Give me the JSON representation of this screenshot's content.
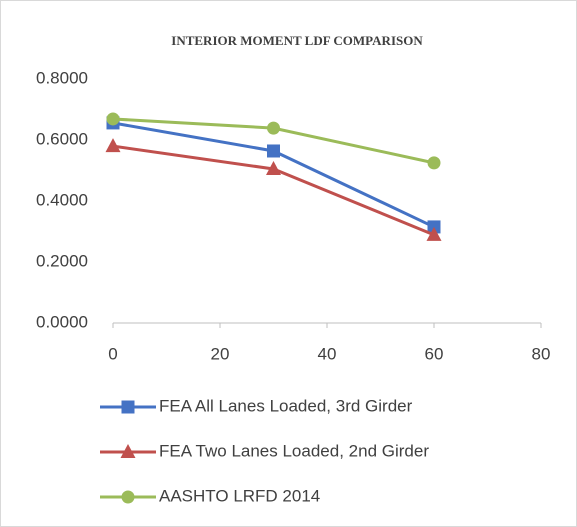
{
  "chart_data": {
    "type": "line",
    "title": "INTERIOR MOMENT LDF COMPARISON",
    "x": [
      0,
      30,
      60
    ],
    "series": [
      {
        "name": "FEA All Lanes Loaded, 3rd Girder",
        "color": "#4472c4",
        "marker": "square",
        "values": [
          0.656,
          0.564,
          0.315
        ]
      },
      {
        "name": "FEA Two Lanes Loaded, 2nd Girder",
        "color": "#c0504d",
        "marker": "triangle",
        "values": [
          0.58,
          0.505,
          0.289
        ]
      },
      {
        "name": "AASHTO LRFD 2014",
        "color": "#9bbb59",
        "marker": "circle",
        "values": [
          0.669,
          0.639,
          0.525
        ]
      }
    ],
    "xlim": [
      0,
      80
    ],
    "xticks": [
      0,
      20,
      40,
      60,
      80
    ],
    "ylim": [
      0,
      0.8
    ],
    "yticks": [
      {
        "value": 0,
        "label": "0.0000"
      },
      {
        "value": 0.2,
        "label": "0.2000"
      },
      {
        "value": 0.4,
        "label": "0.4000"
      },
      {
        "value": 0.6,
        "label": "0.6000"
      },
      {
        "value": 0.8,
        "label": "0.8000"
      }
    ],
    "grid": false,
    "legend": "bottom"
  }
}
